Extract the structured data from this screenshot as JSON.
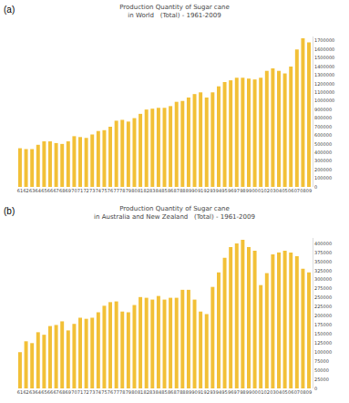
{
  "chart_data": [
    {
      "type": "bar",
      "annotations": [
        "(a)"
      ],
      "title": "Production Quantity of Sugar cane",
      "subtitle": "in World   (Total) - 1961-2009",
      "categories": [
        "61",
        "62",
        "63",
        "64",
        "65",
        "66",
        "67",
        "68",
        "69",
        "70",
        "71",
        "72",
        "73",
        "74",
        "75",
        "76",
        "77",
        "78",
        "79",
        "80",
        "81",
        "82",
        "83",
        "84",
        "85",
        "86",
        "87",
        "88",
        "89",
        "90",
        "91",
        "92",
        "93",
        "94",
        "95",
        "96",
        "97",
        "98",
        "99",
        "00",
        "01",
        "02",
        "03",
        "04",
        "05",
        "06",
        "07",
        "08",
        "09"
      ],
      "values": [
        450000,
        440000,
        440000,
        490000,
        530000,
        530000,
        510000,
        500000,
        530000,
        590000,
        580000,
        570000,
        610000,
        650000,
        660000,
        700000,
        770000,
        780000,
        760000,
        800000,
        850000,
        900000,
        910000,
        920000,
        920000,
        940000,
        990000,
        1000000,
        1040000,
        1080000,
        1100000,
        1040000,
        1100000,
        1170000,
        1220000,
        1240000,
        1270000,
        1270000,
        1260000,
        1250000,
        1270000,
        1350000,
        1380000,
        1350000,
        1320000,
        1400000,
        1600000,
        1730000,
        1680000
      ],
      "color": "#f2c037",
      "ylim": [
        0,
        1750000
      ],
      "yticks": [
        0,
        100000,
        200000,
        300000,
        400000,
        500000,
        600000,
        700000,
        800000,
        900000,
        1000000,
        1100000,
        1200000,
        1300000,
        1400000,
        1500000,
        1600000,
        1700000
      ],
      "grid": false
    },
    {
      "type": "bar",
      "annotations": [
        "(b)"
      ],
      "title": "Production Quantity of Sugar cane",
      "subtitle": "in Australia and New Zealand   (Total) - 1961-2009",
      "categories": [
        "61",
        "62",
        "63",
        "64",
        "65",
        "66",
        "67",
        "68",
        "69",
        "70",
        "71",
        "72",
        "73",
        "74",
        "75",
        "76",
        "77",
        "78",
        "79",
        "80",
        "81",
        "82",
        "83",
        "84",
        "85",
        "86",
        "87",
        "88",
        "89",
        "90",
        "91",
        "92",
        "93",
        "94",
        "95",
        "96",
        "97",
        "98",
        "99",
        "00",
        "01",
        "02",
        "03",
        "04",
        "05",
        "06",
        "07",
        "08",
        "09"
      ],
      "values": [
        100000,
        130000,
        125000,
        155000,
        148000,
        172000,
        175000,
        185000,
        160000,
        178000,
        195000,
        192000,
        195000,
        210000,
        228000,
        238000,
        240000,
        212000,
        210000,
        230000,
        252000,
        250000,
        245000,
        255000,
        245000,
        250000,
        250000,
        272000,
        272000,
        245000,
        212000,
        205000,
        280000,
        320000,
        360000,
        390000,
        400000,
        410000,
        390000,
        380000,
        285000,
        318000,
        370000,
        375000,
        380000,
        375000,
        365000,
        330000,
        320000
      ],
      "color": "#f2c037",
      "ylim": [
        0,
        415000
      ],
      "yticks": [
        0,
        25000,
        50000,
        75000,
        100000,
        125000,
        150000,
        175000,
        200000,
        225000,
        250000,
        275000,
        300000,
        325000,
        350000,
        375000,
        400000
      ],
      "grid": false
    }
  ]
}
